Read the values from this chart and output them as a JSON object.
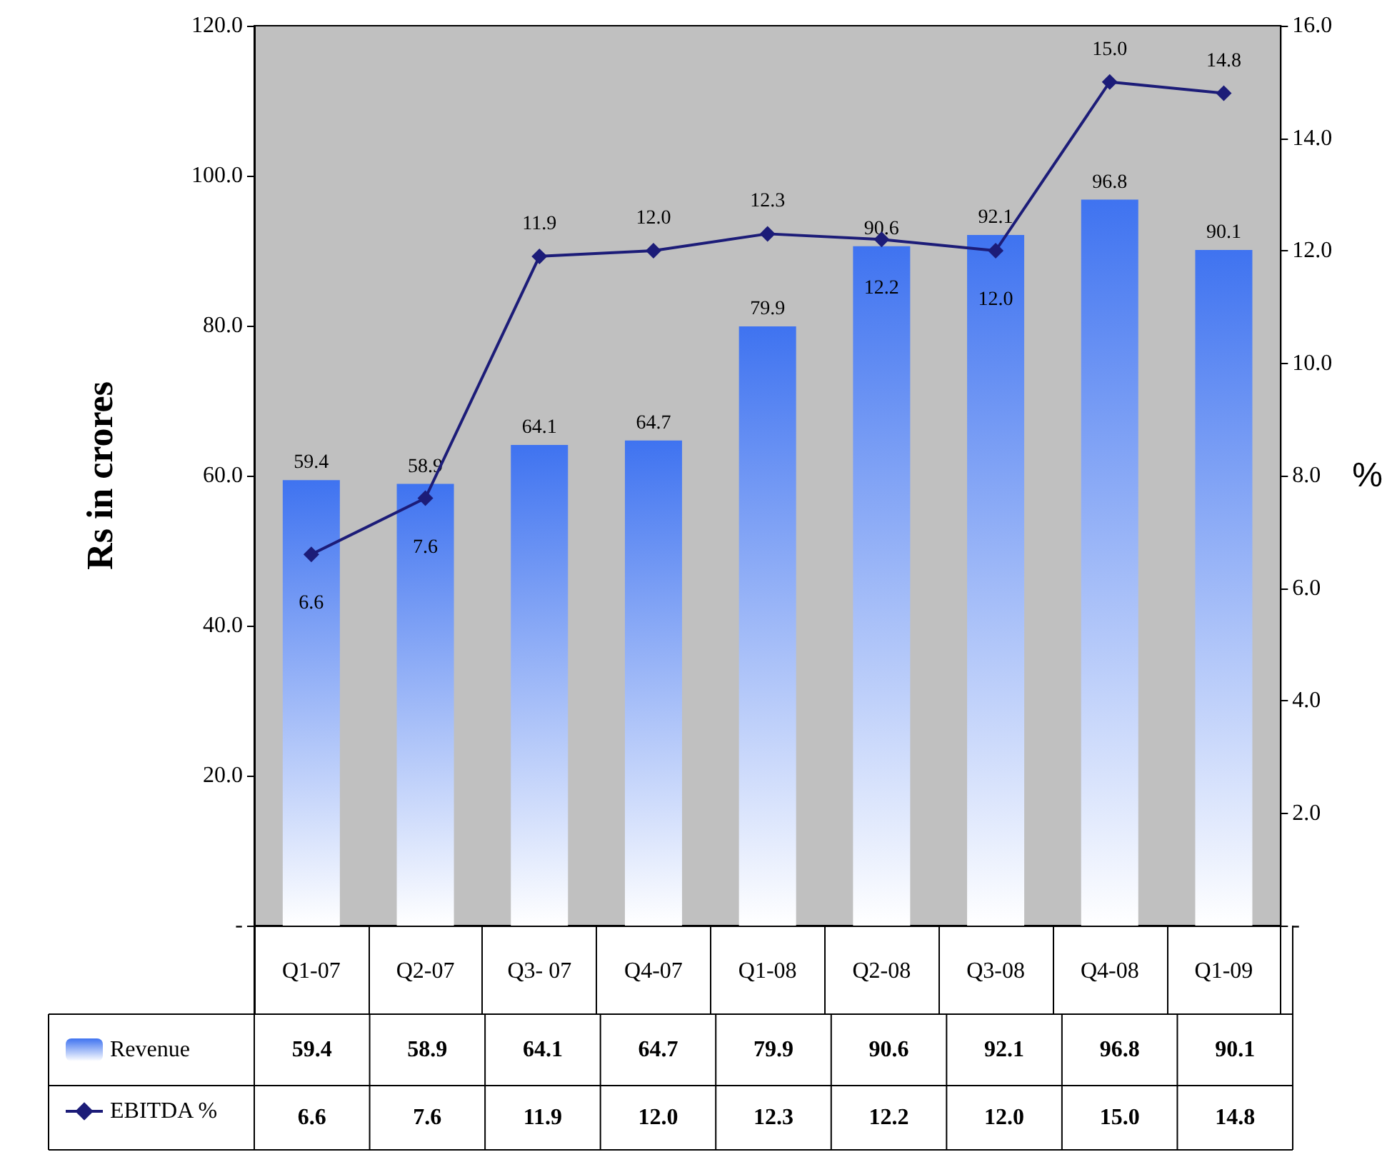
{
  "chart_data": {
    "type": "bar",
    "categories": [
      "Q1-07",
      "Q2-07",
      "Q3- 07",
      "Q4-07",
      "Q1-08",
      "Q2-08",
      "Q3-08",
      "Q4-08",
      "Q1-09"
    ],
    "series": [
      {
        "name": "Revenue",
        "color": "#3f73f0",
        "values": [
          59.4,
          58.9,
          64.1,
          64.7,
          79.9,
          90.6,
          92.1,
          96.8,
          90.1
        ],
        "value_labels": [
          "59.4",
          "58.9",
          "64.1",
          "64.7",
          "79.9",
          "90.6",
          "92.1",
          "96.8",
          "90.1"
        ]
      },
      {
        "name": "EBITDA %",
        "type": "line",
        "axis": "y2",
        "color": "#1c1c78",
        "values": [
          6.6,
          7.6,
          11.9,
          12.0,
          12.3,
          12.2,
          12.0,
          15.0,
          14.8
        ],
        "value_labels": [
          "6.6",
          "7.6",
          "11.9",
          "12.0",
          "12.3",
          "12.2",
          "12.0",
          "15.0",
          "14.8"
        ]
      }
    ],
    "ylabel": "Rs in crores",
    "y2label": "%",
    "ylim": [
      0,
      120
    ],
    "yticks": [
      {
        "value": 0,
        "label": "-"
      },
      {
        "value": 20,
        "label": "20.0"
      },
      {
        "value": 40,
        "label": "40.0"
      },
      {
        "value": 60,
        "label": "60.0"
      },
      {
        "value": 80,
        "label": "80.0"
      },
      {
        "value": 100,
        "label": "100.0"
      },
      {
        "value": 120,
        "label": "120.0"
      }
    ],
    "y2lim": [
      0,
      16
    ],
    "y2ticks": [
      {
        "value": 0,
        "label": "-"
      },
      {
        "value": 2,
        "label": "2.0"
      },
      {
        "value": 4,
        "label": "4.0"
      },
      {
        "value": 6,
        "label": "6.0"
      },
      {
        "value": 8,
        "label": "8.0"
      },
      {
        "value": 10,
        "label": "10.0"
      },
      {
        "value": 12,
        "label": "12.0"
      },
      {
        "value": 14,
        "label": "14.0"
      },
      {
        "value": 16,
        "label": "16.0"
      }
    ],
    "marker": "diamond",
    "line_style": "solid",
    "legend": "bottom left",
    "grid": false
  }
}
